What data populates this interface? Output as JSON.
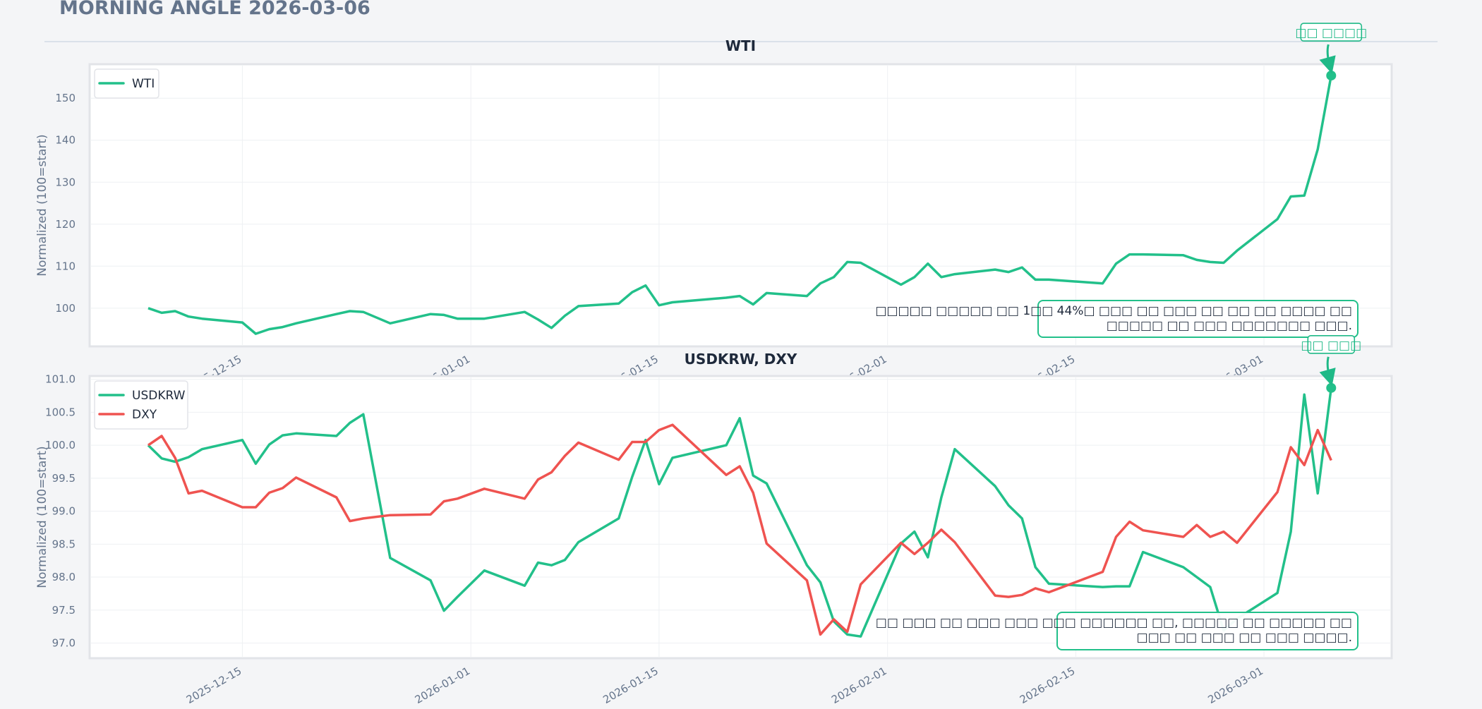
{
  "header": {
    "title": "MORNING ANGLE  2026-03-06"
  },
  "colors": {
    "green": "#22c08a",
    "red": "#ef5350"
  },
  "chart_data": [
    {
      "type": "line",
      "title": "WTI",
      "ylabel": "Normalized (100=start)",
      "xlabel": "",
      "ylim": [
        90.9,
        158.1
      ],
      "yticks": [
        "100",
        "110",
        "120",
        "130",
        "140",
        "150"
      ],
      "xticks": [
        "2025-12-15",
        "2026-01-01",
        "2026-01-15",
        "2026-02-01",
        "2026-02-15",
        "2026-03-01"
      ],
      "grid": true,
      "legend": "top-left",
      "x": [
        "2025-12-08",
        "2025-12-09",
        "2025-12-10",
        "2025-12-11",
        "2025-12-12",
        "2025-12-15",
        "2025-12-16",
        "2025-12-17",
        "2025-12-18",
        "2025-12-19",
        "2025-12-22",
        "2025-12-23",
        "2025-12-24",
        "2025-12-26",
        "2025-12-29",
        "2025-12-30",
        "2025-12-31",
        "2026-01-02",
        "2026-01-05",
        "2026-01-06",
        "2026-01-07",
        "2026-01-08",
        "2026-01-09",
        "2026-01-12",
        "2026-01-13",
        "2026-01-14",
        "2026-01-15",
        "2026-01-16",
        "2026-01-20",
        "2026-01-21",
        "2026-01-22",
        "2026-01-23",
        "2026-01-26",
        "2026-01-27",
        "2026-01-28",
        "2026-01-29",
        "2026-01-30",
        "2026-02-02",
        "2026-02-03",
        "2026-02-04",
        "2026-02-05",
        "2026-02-06",
        "2026-02-09",
        "2026-02-10",
        "2026-02-11",
        "2026-02-12",
        "2026-02-13",
        "2026-02-17",
        "2026-02-18",
        "2026-02-19",
        "2026-02-20",
        "2026-02-23",
        "2026-02-24",
        "2026-02-25",
        "2026-02-26",
        "2026-02-27",
        "2026-03-02",
        "2026-03-03",
        "2026-03-04",
        "2026-03-05",
        "2026-03-06"
      ],
      "series": [
        {
          "name": "WTI",
          "color": "#22c08a",
          "values": [
            100,
            98.9,
            99.3,
            98.0,
            97.5,
            96.6,
            93.9,
            95.0,
            95.5,
            96.4,
            98.6,
            99.3,
            99.1,
            96.4,
            98.6,
            98.4,
            97.5,
            97.5,
            99.1,
            97.3,
            95.3,
            98.2,
            100.5,
            101.1,
            103.8,
            105.4,
            100.7,
            101.4,
            102.5,
            102.9,
            100.9,
            103.6,
            102.9,
            105.9,
            107.4,
            111.0,
            110.8,
            105.6,
            107.4,
            110.6,
            107.4,
            108.1,
            109.2,
            108.6,
            109.7,
            106.8,
            106.8,
            105.9,
            110.6,
            112.8,
            112.8,
            112.6,
            111.5,
            111.0,
            110.8,
            113.7,
            121.2,
            126.6,
            126.8,
            137.8,
            155.4
          ]
        }
      ],
      "annotations": {
        "badge": "□□ □□□□",
        "note_lines": [
          "□□□□□ □□□□□ □□ 1□□ 44%□ □□□ □□ □□□ □□ □□ □□ □□□□ □□",
          "□□□□□ □□ □□□ □□□□□□□ □□□."
        ]
      }
    },
    {
      "type": "line",
      "title": "USDKRW, DXY",
      "ylabel": "Normalized (100=start)",
      "xlabel": "",
      "ylim": [
        96.77,
        101.05
      ],
      "yticks": [
        "97.0",
        "97.5",
        "98.0",
        "98.5",
        "99.0",
        "99.5",
        "100.0",
        "100.5",
        "101.0"
      ],
      "xticks": [
        "2025-12-15",
        "2026-01-01",
        "2026-01-15",
        "2026-02-01",
        "2026-02-15",
        "2026-03-01"
      ],
      "grid": true,
      "legend": "top-left",
      "series": [
        {
          "name": "USDKRW",
          "color": "#22c08a",
          "values": [
            100.0,
            99.8,
            99.75,
            99.82,
            99.94,
            100.08,
            99.72,
            100.01,
            100.15,
            100.18,
            100.14,
            100.34,
            100.47,
            98.29,
            97.95,
            97.49,
            97.7,
            98.1,
            97.87,
            98.22,
            98.18,
            98.26,
            98.53,
            98.89,
            99.52,
            100.08,
            99.41,
            99.81,
            100.0,
            100.41,
            99.54,
            99.42,
            98.18,
            97.92,
            97.33,
            97.13,
            97.1,
            98.51,
            98.69,
            98.3,
            99.21,
            99.94,
            99.38,
            99.09,
            98.89,
            98.15,
            97.9,
            97.85,
            97.86,
            97.86,
            98.38,
            98.15,
            98.0,
            97.85,
            97.19,
            97.37,
            97.76,
            98.69,
            100.77,
            99.27,
            100.87
          ]
        },
        {
          "name": "DXY",
          "color": "#ef5350",
          "values": [
            100.0,
            100.14,
            99.81,
            99.27,
            99.31,
            99.06,
            99.06,
            99.28,
            99.35,
            99.51,
            99.21,
            98.85,
            98.89,
            98.94,
            98.95,
            99.15,
            99.19,
            99.34,
            99.19,
            99.48,
            99.59,
            99.84,
            100.04,
            99.78,
            100.05,
            100.05,
            100.23,
            100.31,
            99.55,
            99.68,
            99.28,
            98.51,
            97.95,
            97.13,
            97.36,
            97.17,
            97.89,
            98.52,
            98.35,
            98.52,
            98.72,
            98.53,
            97.72,
            97.7,
            97.73,
            97.83,
            97.77,
            98.08,
            98.61,
            98.84,
            98.71,
            98.61,
            98.79,
            98.61,
            98.69,
            98.52,
            99.29,
            99.97,
            99.7,
            100.23,
            99.77
          ]
        }
      ],
      "annotations": {
        "badge": "□□ □□□",
        "note_lines": [
          "□□ □□□ □□ □□□ □□□ □□□ □□□□□□ □□, □□□□□ □□ □□□□□ □□",
          "□□□ □□ □□□ □□ □□□ □□□□."
        ]
      }
    }
  ]
}
